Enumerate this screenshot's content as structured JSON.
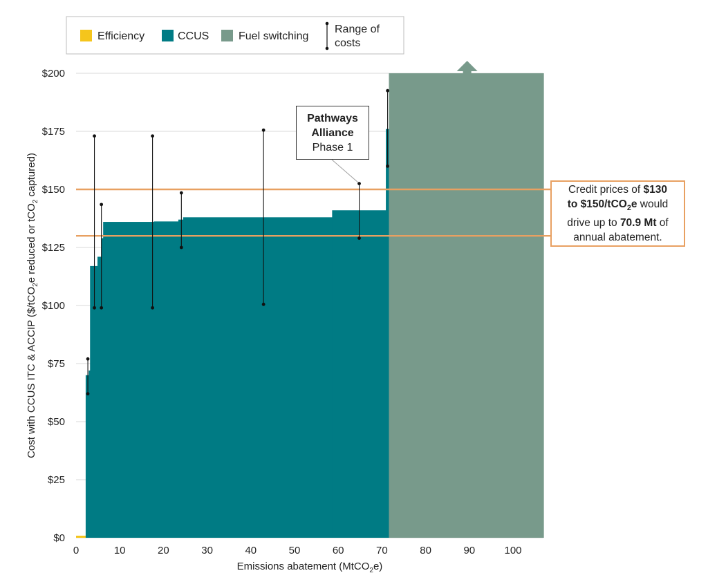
{
  "chart_data": {
    "type": "area",
    "xlabel": "Emissions abatement (MtCO2e)",
    "ylabel": "Cost with CCUS ITC & ACCIP ($/tCO2e reduced or tCO2 captured)",
    "xlim": [
      0,
      107
    ],
    "ylim": [
      0,
      200
    ],
    "x_ticks": [
      "0",
      "10",
      "20",
      "30",
      "40",
      "50",
      "60",
      "70",
      "80",
      "90",
      "100"
    ],
    "y_ticks": [
      "$0",
      "$25",
      "$50",
      "$75",
      "$100",
      "$125",
      "$150",
      "$175",
      "$200"
    ],
    "grid": "horizontal",
    "legend": {
      "placement": "top",
      "entries": [
        {
          "name": "Efficiency",
          "color": "#f5c51c"
        },
        {
          "name": "CCUS",
          "color": "#007b84"
        },
        {
          "name": "Fuel switching",
          "color": "#789a8b"
        },
        {
          "name": "Range of costs",
          "color": "#111111"
        }
      ]
    },
    "series": [
      {
        "name": "Efficiency",
        "color": "#f5c51c",
        "steps": [
          {
            "x0": 0,
            "x1": 2.2,
            "y": 0
          }
        ]
      },
      {
        "name": "CCUS",
        "color": "#007b84",
        "steps": [
          {
            "x0": 2.2,
            "x1": 2.9,
            "y": 70
          },
          {
            "x0": 2.9,
            "x1": 3.2,
            "y": 72
          },
          {
            "x0": 3.2,
            "x1": 4.9,
            "y": 117
          },
          {
            "x0": 4.9,
            "x1": 5.8,
            "y": 121
          },
          {
            "x0": 5.8,
            "x1": 6.2,
            "y": 129
          },
          {
            "x0": 6.2,
            "x1": 17.8,
            "y": 136
          },
          {
            "x0": 17.8,
            "x1": 23.4,
            "y": 136.2
          },
          {
            "x0": 23.4,
            "x1": 24.5,
            "y": 137
          },
          {
            "x0": 24.5,
            "x1": 58.6,
            "y": 138
          },
          {
            "x0": 58.6,
            "x1": 70.9,
            "y": 141
          },
          {
            "x0": 70.9,
            "x1": 71.6,
            "y": 176
          }
        ]
      },
      {
        "name": "Fuel switching",
        "color": "#789a8b",
        "steps": [
          {
            "x0": 71.6,
            "x1": 107,
            "y": 200
          }
        ]
      }
    ],
    "ranges": [
      {
        "x": 2.7,
        "low": 62,
        "high": 77
      },
      {
        "x": 4.2,
        "low": 99,
        "high": 173
      },
      {
        "x": 5.8,
        "low": 99,
        "high": 143.5
      },
      {
        "x": 17.5,
        "low": 99,
        "high": 173
      },
      {
        "x": 24.1,
        "low": 125,
        "high": 148.5
      },
      {
        "x": 42.9,
        "low": 100.5,
        "high": 175.5
      },
      {
        "x": 64.8,
        "low": 129,
        "high": 152.5
      },
      {
        "x": 71.3,
        "low": 160,
        "high": 192.5
      }
    ],
    "reference_lines": [
      {
        "y": 130,
        "color": "#e8a061"
      },
      {
        "y": 150,
        "color": "#e8a061"
      }
    ],
    "annotations": {
      "pathways": {
        "line1": "Pathways",
        "line2": "Alliance",
        "line3": "Phase 1",
        "x": 64.8,
        "y": 152.5
      },
      "callout": {
        "t1": "Credit prices of ",
        "b1": "$130",
        "b2": "to $150/tCO",
        "b2_sub": "2",
        "b2_end": "e",
        "t2": " would",
        "t3": "drive up to ",
        "b3": "70.9 Mt",
        "t4": " of",
        "t5": "annual abatement."
      }
    }
  }
}
